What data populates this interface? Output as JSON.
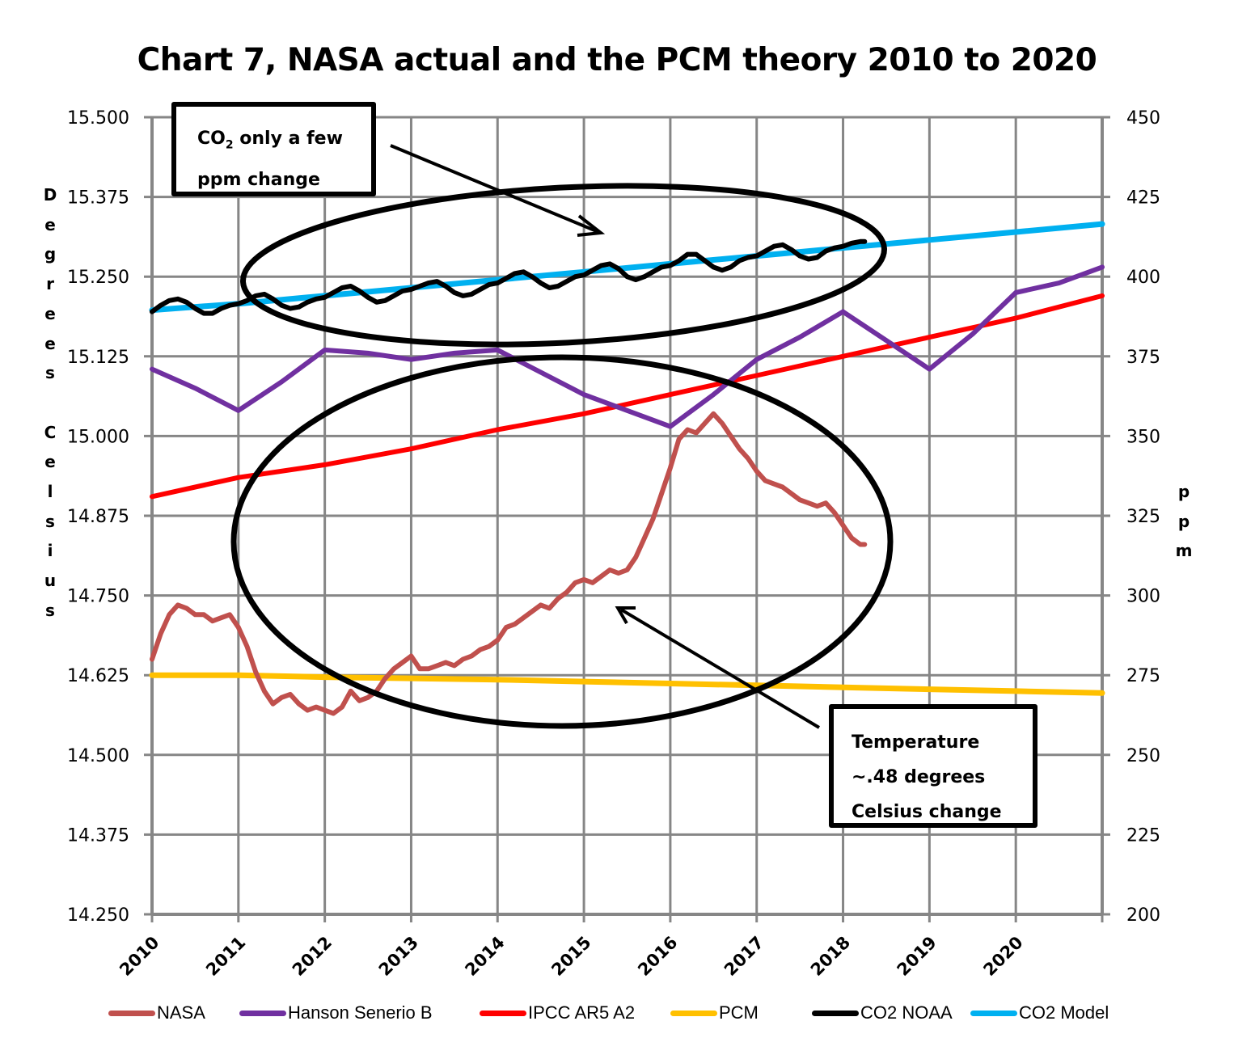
{
  "chart_data": {
    "type": "line",
    "title": "Chart 7, NASA actual and the PCM theory 2010 to 2020",
    "xlabel": "",
    "ylabel": "Degrees Celsius",
    "y2label": "ppm",
    "x_tick_labels": [
      "2010",
      "2011",
      "2012",
      "2013",
      "2014",
      "2015",
      "2016",
      "2017",
      "2018",
      "2019",
      "2020"
    ],
    "xlim": [
      2010,
      2021
    ],
    "ylim": [
      14.25,
      15.5
    ],
    "y2lim": [
      200,
      450
    ],
    "y_tick_labels": [
      "15.500",
      "15.375",
      "15.250",
      "15.125",
      "15.000",
      "14.875",
      "14.750",
      "14.625",
      "14.500",
      "14.375",
      "14.250"
    ],
    "y2_tick_labels": [
      "450",
      "425",
      "400",
      "375",
      "350",
      "325",
      "300",
      "275",
      "250",
      "225",
      "200"
    ],
    "grid": true,
    "legend_position": "bottom",
    "series": [
      {
        "name": "NASA",
        "axis": "left",
        "color": "#C0504D",
        "x": [
          2010.0,
          2010.1,
          2010.2,
          2010.3,
          2010.4,
          2010.5,
          2010.6,
          2010.7,
          2010.8,
          2010.9,
          2011.0,
          2011.1,
          2011.2,
          2011.3,
          2011.4,
          2011.5,
          2011.6,
          2011.7,
          2011.8,
          2011.9,
          2012.0,
          2012.1,
          2012.2,
          2012.3,
          2012.4,
          2012.5,
          2012.6,
          2012.7,
          2012.8,
          2012.9,
          2013.0,
          2013.1,
          2013.2,
          2013.3,
          2013.4,
          2013.5,
          2013.6,
          2013.7,
          2013.8,
          2013.9,
          2014.0,
          2014.1,
          2014.2,
          2014.3,
          2014.4,
          2014.5,
          2014.6,
          2014.7,
          2014.8,
          2014.9,
          2015.0,
          2015.1,
          2015.2,
          2015.3,
          2015.4,
          2015.5,
          2015.6,
          2015.7,
          2015.8,
          2015.9,
          2016.0,
          2016.1,
          2016.2,
          2016.3,
          2016.4,
          2016.5,
          2016.6,
          2016.7,
          2016.8,
          2016.9,
          2017.0,
          2017.1,
          2017.2,
          2017.3,
          2017.4,
          2017.5,
          2017.6,
          2017.7,
          2017.8,
          2017.9,
          2018.0,
          2018.1,
          2018.2,
          2018.25
        ],
        "y": [
          14.65,
          14.69,
          14.72,
          14.735,
          14.73,
          14.72,
          14.72,
          14.71,
          14.715,
          14.72,
          14.7,
          14.67,
          14.63,
          14.6,
          14.58,
          14.59,
          14.595,
          14.58,
          14.57,
          14.575,
          14.57,
          14.565,
          14.575,
          14.6,
          14.585,
          14.59,
          14.6,
          14.62,
          14.635,
          14.645,
          14.655,
          14.635,
          14.635,
          14.64,
          14.645,
          14.64,
          14.65,
          14.655,
          14.665,
          14.67,
          14.68,
          14.7,
          14.705,
          14.715,
          14.725,
          14.735,
          14.73,
          14.745,
          14.755,
          14.77,
          14.775,
          14.77,
          14.78,
          14.79,
          14.785,
          14.79,
          14.81,
          14.84,
          14.87,
          14.91,
          14.95,
          14.995,
          15.01,
          15.005,
          15.02,
          15.035,
          15.02,
          15.0,
          14.98,
          14.965,
          14.945,
          14.93,
          14.925,
          14.92,
          14.91,
          14.9,
          14.895,
          14.89,
          14.895,
          14.88,
          14.86,
          14.84,
          14.83,
          14.83
        ]
      },
      {
        "name": "Hanson Senerio B",
        "axis": "left",
        "color": "#7030A0",
        "x": [
          2010.0,
          2010.5,
          2011.0,
          2011.5,
          2012.0,
          2012.5,
          2013.0,
          2013.5,
          2014.0,
          2014.5,
          2015.0,
          2015.5,
          2016.0,
          2016.5,
          2017.0,
          2017.5,
          2018.0,
          2018.5,
          2019.0,
          2019.5,
          2020.0,
          2020.5,
          2021.0
        ],
        "y": [
          15.105,
          15.075,
          15.04,
          15.085,
          15.135,
          15.13,
          15.12,
          15.13,
          15.135,
          15.1,
          15.065,
          15.04,
          15.015,
          15.065,
          15.12,
          15.155,
          15.195,
          15.15,
          15.105,
          15.16,
          15.225,
          15.24,
          15.265
        ]
      },
      {
        "name": "IPCC AR5 A2",
        "axis": "left",
        "color": "#FF0000",
        "x": [
          2010.0,
          2011.0,
          2012.0,
          2013.0,
          2014.0,
          2015.0,
          2016.0,
          2017.0,
          2018.0,
          2019.0,
          2020.0,
          2021.0
        ],
        "y": [
          14.905,
          14.935,
          14.955,
          14.98,
          15.01,
          15.035,
          15.065,
          15.095,
          15.125,
          15.155,
          15.185,
          15.22
        ]
      },
      {
        "name": "PCM",
        "axis": "left",
        "color": "#FFC000",
        "x": [
          2010.0,
          2011.0,
          2012.0,
          2013.0,
          2014.0,
          2015.0,
          2016.0,
          2017.0,
          2018.0,
          2019.0,
          2020.0,
          2021.0
        ],
        "y": [
          14.625,
          14.625,
          14.622,
          14.62,
          14.618,
          14.615,
          14.612,
          14.609,
          14.606,
          14.603,
          14.6,
          14.597
        ]
      },
      {
        "name": "CO2 NOAA",
        "axis": "right",
        "color": "#000000",
        "x": [
          2010.0,
          2010.1,
          2010.2,
          2010.3,
          2010.4,
          2010.5,
          2010.6,
          2010.7,
          2010.8,
          2010.9,
          2011.0,
          2011.1,
          2011.2,
          2011.3,
          2011.4,
          2011.5,
          2011.6,
          2011.7,
          2011.8,
          2011.9,
          2012.0,
          2012.1,
          2012.2,
          2012.3,
          2012.4,
          2012.5,
          2012.6,
          2012.7,
          2012.8,
          2012.9,
          2013.0,
          2013.1,
          2013.2,
          2013.3,
          2013.4,
          2013.5,
          2013.6,
          2013.7,
          2013.8,
          2013.9,
          2014.0,
          2014.1,
          2014.2,
          2014.3,
          2014.4,
          2014.5,
          2014.6,
          2014.7,
          2014.8,
          2014.9,
          2015.0,
          2015.1,
          2015.2,
          2015.3,
          2015.4,
          2015.5,
          2015.6,
          2015.7,
          2015.8,
          2015.9,
          2016.0,
          2016.1,
          2016.2,
          2016.3,
          2016.4,
          2016.5,
          2016.6,
          2016.7,
          2016.8,
          2016.9,
          2017.0,
          2017.1,
          2017.2,
          2017.3,
          2017.4,
          2017.5,
          2017.6,
          2017.7,
          2017.8,
          2017.9,
          2018.0,
          2018.1,
          2018.2,
          2018.25
        ],
        "y": [
          389,
          391,
          392.5,
          393,
          392,
          390,
          388.5,
          388.5,
          390,
          391,
          391.5,
          392.5,
          394,
          394.5,
          393,
          391,
          390,
          390.5,
          392,
          393,
          393.5,
          395,
          396.5,
          397,
          395.5,
          393.5,
          392,
          392.5,
          394,
          395.5,
          396,
          397,
          398,
          398.5,
          397,
          395,
          394,
          394.5,
          396,
          397.5,
          398,
          399.5,
          401,
          401.5,
          400,
          398,
          396.5,
          397,
          398.5,
          400,
          400.5,
          402,
          403.5,
          404,
          402.5,
          400,
          399,
          400,
          401.5,
          403,
          403.5,
          405,
          407,
          407,
          405,
          403,
          402,
          403,
          405,
          406,
          406.5,
          408,
          409.5,
          410,
          408.5,
          406.5,
          405.5,
          406,
          408,
          409,
          409.5,
          410.5,
          411,
          411
        ]
      },
      {
        "name": "CO2 Model",
        "axis": "right",
        "color": "#00B0F0",
        "x": [
          2010.0,
          2011.0,
          2012.0,
          2013.0,
          2014.0,
          2015.0,
          2016.0,
          2017.0,
          2018.0,
          2019.0,
          2020.0,
          2021.0
        ],
        "y": [
          389.5,
          391.5,
          394,
          396.5,
          399,
          401.5,
          404,
          406.5,
          409,
          411.5,
          414,
          416.5
        ]
      }
    ],
    "annotations": [
      {
        "lines": [
          "CO2 only a few",
          "ppm change"
        ],
        "subscript_char": "2"
      },
      {
        "lines": [
          "Temperature",
          "~.48 degrees",
          "Celsius change"
        ]
      }
    ]
  },
  "legend": [
    {
      "label": "NASA",
      "color": "#C0504D"
    },
    {
      "label": "Hanson Senerio B",
      "color": "#7030A0"
    },
    {
      "label": "IPCC AR5 A2",
      "color": "#FF0000"
    },
    {
      "label": "PCM",
      "color": "#FFC000"
    },
    {
      "label": "CO2 NOAA",
      "color": "#000000"
    },
    {
      "label": "CO2 Model",
      "color": "#00B0F0"
    }
  ],
  "axis_title_left_letters": [
    "D",
    "e",
    "g",
    "r",
    "e",
    "e",
    "s",
    "",
    "C",
    "e",
    "l",
    "s",
    "i",
    "u",
    "s"
  ],
  "axis_title_right_letters": [
    "p",
    "p",
    "m"
  ],
  "annotation1": {
    "prefix": "CO",
    "sub": "2",
    "suffix": " only a few",
    "line2": "ppm change"
  },
  "annotation2": {
    "line1": "Temperature",
    "line2": "~.48 degrees",
    "line3": "Celsius change"
  }
}
